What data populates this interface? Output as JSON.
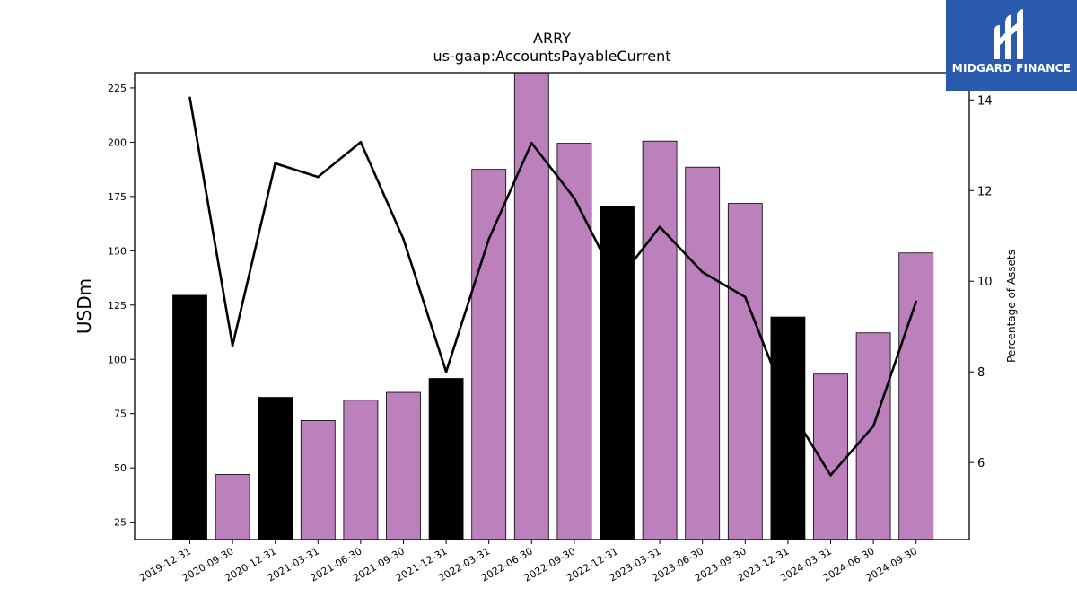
{
  "logo": {
    "text": "MIDGARD FINANCE",
    "icon": "midgard-logo-icon",
    "bg_color": "#2a5aad"
  },
  "chart_data": {
    "type": "bar",
    "title": "ARRY",
    "subtitle": "us-gaap:AccountsPayableCurrent",
    "ylabel": "USDm",
    "y2label": "Percentage of Assets",
    "categories": [
      "2019-12-31",
      "2020-09-30",
      "2020-12-31",
      "2021-03-31",
      "2021-06-30",
      "2021-09-30",
      "2021-12-31",
      "2022-03-31",
      "2022-06-30",
      "2022-09-30",
      "2022-12-31",
      "2023-03-31",
      "2023-06-30",
      "2023-09-30",
      "2023-12-31",
      "2024-03-31",
      "2024-06-30",
      "2024-09-30"
    ],
    "series": [
      {
        "type": "bar",
        "values": [
          129.5,
          47,
          82.5,
          71.8,
          81.2,
          84.8,
          91.2,
          187.5,
          232,
          199.5,
          170.5,
          200.5,
          188.5,
          171.8,
          119.5,
          93.2,
          112.2,
          149
        ]
      },
      {
        "type": "line",
        "axis": "right",
        "values": [
          14.05,
          8.58,
          12.6,
          12.3,
          13.07,
          10.93,
          8.0,
          10.93,
          13.05,
          11.83,
          9.98,
          11.2,
          10.2,
          9.65,
          7.25,
          5.72,
          6.8,
          9.55
        ]
      }
    ],
    "bar_colors": [
      "#000000",
      "#bc80bd",
      "#000000",
      "#bc80bd",
      "#bc80bd",
      "#bc80bd",
      "#000000",
      "#bc80bd",
      "#bc80bd",
      "#bc80bd",
      "#000000",
      "#bc80bd",
      "#bc80bd",
      "#bc80bd",
      "#000000",
      "#bc80bd",
      "#bc80bd",
      "#bc80bd"
    ],
    "line_color": "#000000",
    "ylim": [
      17,
      232
    ],
    "y2lim": [
      4.3,
      14.6
    ],
    "yticks": [
      25,
      50,
      75,
      100,
      125,
      150,
      175,
      200,
      225
    ],
    "y2ticks": [
      6,
      8,
      10,
      12,
      14
    ],
    "grid": false,
    "legend": "none"
  }
}
